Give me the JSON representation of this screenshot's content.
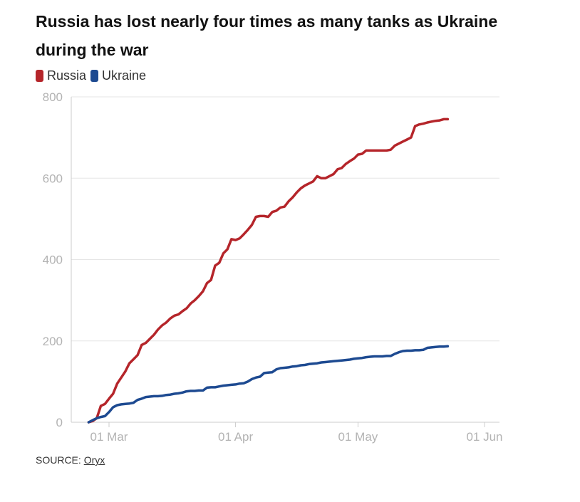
{
  "header": {
    "title": "Russia has lost nearly four times as many tanks as Ukraine during the war"
  },
  "legend": {
    "items": [
      {
        "label": "Russia",
        "color": "#b5252a"
      },
      {
        "label": "Ukraine",
        "color": "#1d4a91"
      }
    ]
  },
  "footer": {
    "source_prefix": "SOURCE: ",
    "source_link": "Oryx"
  },
  "chart_data": {
    "type": "line",
    "title": "Russia has lost nearly four times as many tanks as Ukraine during the war",
    "xlabel": "",
    "ylabel": "",
    "ylim": [
      0,
      800
    ],
    "xlim": [
      "2022-02-24",
      "2022-06-02"
    ],
    "yticks": [
      0,
      200,
      400,
      600,
      800
    ],
    "xticks": [
      {
        "date": "2022-03-01",
        "label": "01 Mar"
      },
      {
        "date": "2022-04-01",
        "label": "01 Apr"
      },
      {
        "date": "2022-05-01",
        "label": "01 May"
      },
      {
        "date": "2022-06-01",
        "label": "01 Jun"
      }
    ],
    "grid": "horizontal",
    "legend_position": "top-left",
    "series": [
      {
        "name": "Russia",
        "color": "#b5252a",
        "points": [
          [
            "2022-02-24",
            0
          ],
          [
            "2022-02-25",
            3
          ],
          [
            "2022-02-26",
            10
          ],
          [
            "2022-02-27",
            40
          ],
          [
            "2022-02-28",
            45
          ],
          [
            "2022-03-01",
            58
          ],
          [
            "2022-03-02",
            70
          ],
          [
            "2022-03-03",
            95
          ],
          [
            "2022-03-04",
            110
          ],
          [
            "2022-03-05",
            125
          ],
          [
            "2022-03-06",
            145
          ],
          [
            "2022-03-07",
            155
          ],
          [
            "2022-03-08",
            165
          ],
          [
            "2022-03-09",
            190
          ],
          [
            "2022-03-10",
            195
          ],
          [
            "2022-03-11",
            205
          ],
          [
            "2022-03-12",
            215
          ],
          [
            "2022-03-13",
            228
          ],
          [
            "2022-03-14",
            238
          ],
          [
            "2022-03-15",
            245
          ],
          [
            "2022-03-16",
            255
          ],
          [
            "2022-03-17",
            262
          ],
          [
            "2022-03-18",
            265
          ],
          [
            "2022-03-19",
            273
          ],
          [
            "2022-03-20",
            280
          ],
          [
            "2022-03-21",
            292
          ],
          [
            "2022-03-22",
            300
          ],
          [
            "2022-03-23",
            310
          ],
          [
            "2022-03-24",
            322
          ],
          [
            "2022-03-25",
            342
          ],
          [
            "2022-03-26",
            350
          ],
          [
            "2022-03-27",
            385
          ],
          [
            "2022-03-28",
            392
          ],
          [
            "2022-03-29",
            415
          ],
          [
            "2022-03-30",
            425
          ],
          [
            "2022-03-31",
            450
          ],
          [
            "2022-04-01",
            448
          ],
          [
            "2022-04-02",
            452
          ],
          [
            "2022-04-03",
            462
          ],
          [
            "2022-04-04",
            473
          ],
          [
            "2022-04-05",
            485
          ],
          [
            "2022-04-06",
            505
          ],
          [
            "2022-04-07",
            507
          ],
          [
            "2022-04-08",
            507
          ],
          [
            "2022-04-09",
            505
          ],
          [
            "2022-04-10",
            517
          ],
          [
            "2022-04-11",
            520
          ],
          [
            "2022-04-12",
            528
          ],
          [
            "2022-04-13",
            530
          ],
          [
            "2022-04-14",
            543
          ],
          [
            "2022-04-15",
            553
          ],
          [
            "2022-04-16",
            565
          ],
          [
            "2022-04-17",
            575
          ],
          [
            "2022-04-18",
            582
          ],
          [
            "2022-04-19",
            587
          ],
          [
            "2022-04-20",
            592
          ],
          [
            "2022-04-21",
            605
          ],
          [
            "2022-04-22",
            600
          ],
          [
            "2022-04-23",
            600
          ],
          [
            "2022-04-24",
            605
          ],
          [
            "2022-04-25",
            610
          ],
          [
            "2022-04-26",
            622
          ],
          [
            "2022-04-27",
            625
          ],
          [
            "2022-04-28",
            635
          ],
          [
            "2022-04-29",
            642
          ],
          [
            "2022-04-30",
            648
          ],
          [
            "2022-05-01",
            658
          ],
          [
            "2022-05-02",
            660
          ],
          [
            "2022-05-03",
            668
          ],
          [
            "2022-05-04",
            668
          ],
          [
            "2022-05-05",
            668
          ],
          [
            "2022-05-06",
            668
          ],
          [
            "2022-05-07",
            668
          ],
          [
            "2022-05-08",
            668
          ],
          [
            "2022-05-09",
            670
          ],
          [
            "2022-05-10",
            680
          ],
          [
            "2022-05-11",
            685
          ],
          [
            "2022-05-12",
            690
          ],
          [
            "2022-05-13",
            695
          ],
          [
            "2022-05-14",
            700
          ],
          [
            "2022-05-15",
            728
          ],
          [
            "2022-05-16",
            732
          ],
          [
            "2022-05-17",
            734
          ],
          [
            "2022-05-18",
            737
          ],
          [
            "2022-05-19",
            739
          ],
          [
            "2022-05-20",
            741
          ],
          [
            "2022-05-21",
            742
          ],
          [
            "2022-05-22",
            745
          ],
          [
            "2022-05-23",
            745
          ]
        ]
      },
      {
        "name": "Ukraine",
        "color": "#1d4a91",
        "points": [
          [
            "2022-02-24",
            0
          ],
          [
            "2022-02-25",
            5
          ],
          [
            "2022-02-26",
            10
          ],
          [
            "2022-02-27",
            13
          ],
          [
            "2022-02-28",
            15
          ],
          [
            "2022-03-01",
            25
          ],
          [
            "2022-03-02",
            37
          ],
          [
            "2022-03-03",
            42
          ],
          [
            "2022-03-04",
            44
          ],
          [
            "2022-03-05",
            45
          ],
          [
            "2022-03-06",
            46
          ],
          [
            "2022-03-07",
            48
          ],
          [
            "2022-03-08",
            55
          ],
          [
            "2022-03-09",
            58
          ],
          [
            "2022-03-10",
            62
          ],
          [
            "2022-03-11",
            63
          ],
          [
            "2022-03-12",
            64
          ],
          [
            "2022-03-13",
            64
          ],
          [
            "2022-03-14",
            65
          ],
          [
            "2022-03-15",
            67
          ],
          [
            "2022-03-16",
            68
          ],
          [
            "2022-03-17",
            70
          ],
          [
            "2022-03-18",
            71
          ],
          [
            "2022-03-19",
            73
          ],
          [
            "2022-03-20",
            76
          ],
          [
            "2022-03-21",
            77
          ],
          [
            "2022-03-22",
            77
          ],
          [
            "2022-03-23",
            78
          ],
          [
            "2022-03-24",
            78
          ],
          [
            "2022-03-25",
            85
          ],
          [
            "2022-03-26",
            86
          ],
          [
            "2022-03-27",
            86
          ],
          [
            "2022-03-28",
            88
          ],
          [
            "2022-03-29",
            90
          ],
          [
            "2022-03-30",
            91
          ],
          [
            "2022-03-31",
            92
          ],
          [
            "2022-04-01",
            93
          ],
          [
            "2022-04-02",
            95
          ],
          [
            "2022-04-03",
            96
          ],
          [
            "2022-04-04",
            100
          ],
          [
            "2022-04-05",
            106
          ],
          [
            "2022-04-06",
            110
          ],
          [
            "2022-04-07",
            112
          ],
          [
            "2022-04-08",
            121
          ],
          [
            "2022-04-09",
            122
          ],
          [
            "2022-04-10",
            123
          ],
          [
            "2022-04-11",
            130
          ],
          [
            "2022-04-12",
            133
          ],
          [
            "2022-04-13",
            134
          ],
          [
            "2022-04-14",
            135
          ],
          [
            "2022-04-15",
            137
          ],
          [
            "2022-04-16",
            138
          ],
          [
            "2022-04-17",
            140
          ],
          [
            "2022-04-18",
            141
          ],
          [
            "2022-04-19",
            143
          ],
          [
            "2022-04-20",
            144
          ],
          [
            "2022-04-21",
            145
          ],
          [
            "2022-04-22",
            147
          ],
          [
            "2022-04-23",
            148
          ],
          [
            "2022-04-24",
            149
          ],
          [
            "2022-04-25",
            150
          ],
          [
            "2022-04-26",
            151
          ],
          [
            "2022-04-27",
            152
          ],
          [
            "2022-04-28",
            153
          ],
          [
            "2022-04-29",
            154
          ],
          [
            "2022-04-30",
            156
          ],
          [
            "2022-05-01",
            157
          ],
          [
            "2022-05-02",
            158
          ],
          [
            "2022-05-03",
            160
          ],
          [
            "2022-05-04",
            161
          ],
          [
            "2022-05-05",
            162
          ],
          [
            "2022-05-06",
            162
          ],
          [
            "2022-05-07",
            162
          ],
          [
            "2022-05-08",
            163
          ],
          [
            "2022-05-09",
            163
          ],
          [
            "2022-05-10",
            168
          ],
          [
            "2022-05-11",
            172
          ],
          [
            "2022-05-12",
            175
          ],
          [
            "2022-05-13",
            176
          ],
          [
            "2022-05-14",
            176
          ],
          [
            "2022-05-15",
            177
          ],
          [
            "2022-05-16",
            177
          ],
          [
            "2022-05-17",
            178
          ],
          [
            "2022-05-18",
            183
          ],
          [
            "2022-05-19",
            184
          ],
          [
            "2022-05-20",
            185
          ],
          [
            "2022-05-21",
            186
          ],
          [
            "2022-05-22",
            186
          ],
          [
            "2022-05-23",
            187
          ]
        ]
      }
    ]
  }
}
